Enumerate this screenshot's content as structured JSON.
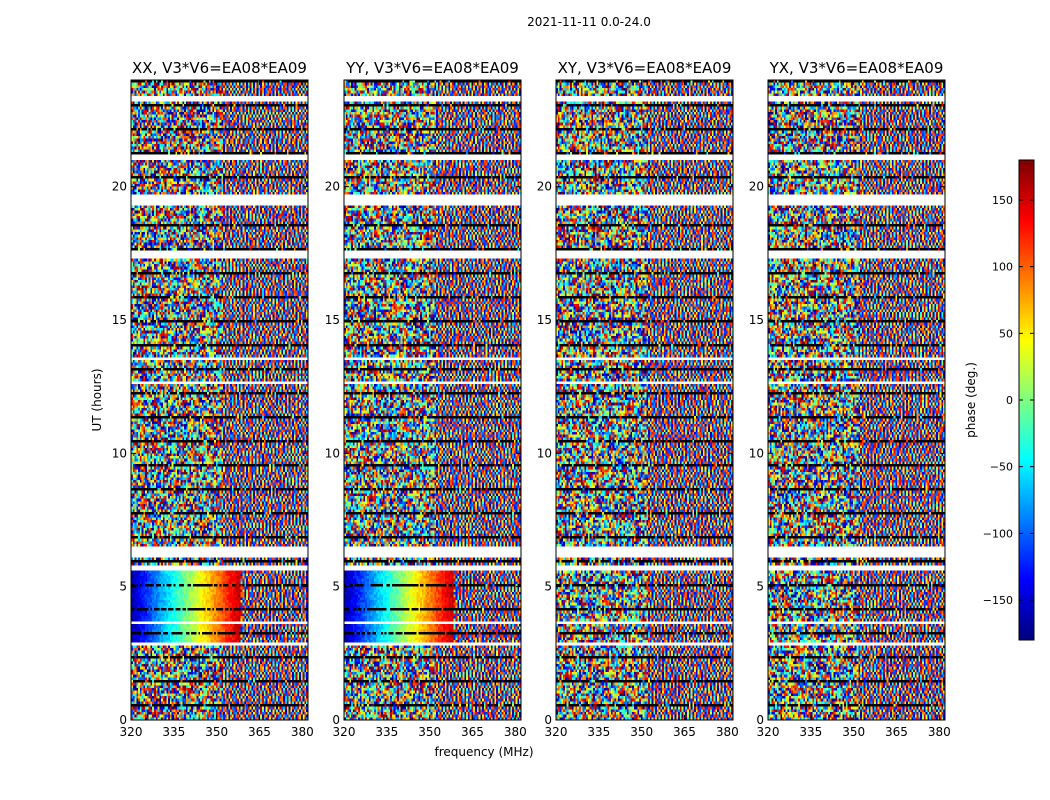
{
  "chart_data": {
    "type": "heatmap",
    "title": "2021-11-11 0.0-24.0",
    "xlabel": "frequency (MHz)",
    "ylabel": "UT (hours)",
    "xlim": [
      320,
      382
    ],
    "ylim": [
      0,
      24
    ],
    "xticks": [
      320,
      335,
      350,
      365,
      380
    ],
    "yticks": [
      0,
      5,
      10,
      15,
      20
    ],
    "grid": false,
    "colormap": "jet",
    "colorbar": {
      "label": "phase (deg.)",
      "range": [
        -180,
        180
      ],
      "ticks": [
        150,
        100,
        50,
        0,
        -50,
        -100,
        -150
      ],
      "tick_labels": [
        "150",
        "100",
        "50",
        "0",
        "−50",
        "−100",
        "−150"
      ]
    },
    "panels": [
      {
        "title": "XX, V3*V6=EA08*EA09",
        "polarization": "XX",
        "strong_phase_ramp_hours": [
          2.9,
          5.6
        ]
      },
      {
        "title": "YY, V3*V6=EA08*EA09",
        "polarization": "YY",
        "strong_phase_ramp_hours": [
          2.9,
          5.6
        ]
      },
      {
        "title": "XY, V3*V6=EA08*EA09",
        "polarization": "XY",
        "strong_phase_ramp_hours": null
      },
      {
        "title": "YX, V3*V6=EA08*EA09",
        "polarization": "YX",
        "strong_phase_ramp_hours": null
      }
    ],
    "flagged_gaps_hours": [
      [
        23.2,
        23.35
      ],
      [
        21.0,
        21.2
      ],
      [
        19.35,
        19.65
      ],
      [
        17.3,
        17.6
      ],
      [
        13.5,
        13.6
      ],
      [
        12.55,
        12.7
      ],
      [
        6.1,
        6.5
      ],
      [
        5.6,
        5.75
      ],
      [
        3.6,
        3.7
      ],
      [
        2.8,
        2.9
      ]
    ]
  }
}
